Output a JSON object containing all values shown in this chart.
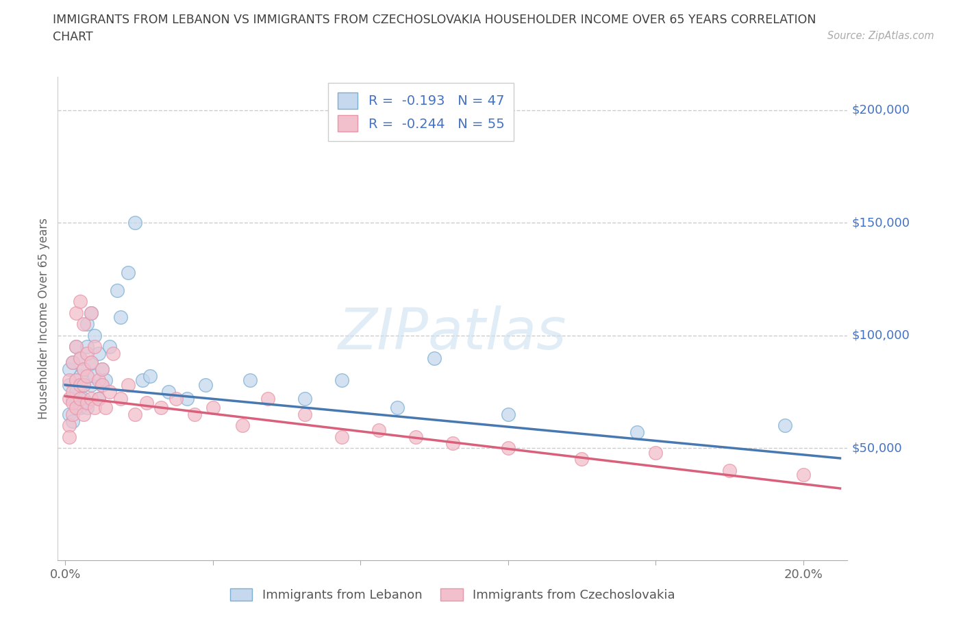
{
  "title_line1": "IMMIGRANTS FROM LEBANON VS IMMIGRANTS FROM CZECHOSLOVAKIA HOUSEHOLDER INCOME OVER 65 YEARS CORRELATION",
  "title_line2": "CHART",
  "source": "Source: ZipAtlas.com",
  "ylabel": "Householder Income Over 65 years",
  "xlim": [
    -0.002,
    0.212
  ],
  "ylim": [
    0,
    215000
  ],
  "ytick_vals": [
    50000,
    100000,
    150000,
    200000
  ],
  "ytick_labels": [
    "$50,000",
    "$100,000",
    "$150,000",
    "$200,000"
  ],
  "xtick_vals": [
    0.0,
    0.04,
    0.08,
    0.12,
    0.16,
    0.2
  ],
  "xtick_labels": [
    "0.0%",
    "",
    "",
    "",
    "",
    "20.0%"
  ],
  "lebanon_R": -0.193,
  "lebanon_N": 47,
  "czech_R": -0.244,
  "czech_N": 55,
  "watermark": "ZIPatlas",
  "blue_fill": "#c5d8ed",
  "pink_fill": "#f2bfcc",
  "blue_edge": "#7aafd4",
  "pink_edge": "#e896aa",
  "blue_line": "#4878b0",
  "pink_line": "#d9607a",
  "legend_color": "#4472c4",
  "title_color": "#404040",
  "grid_color": "#cccccc",
  "right_label_color": "#4472c4",
  "axis_label_color": "#666666",
  "bottom_legend_color": "#555555",
  "lb_intercept": 78000,
  "lb_slope": -155000,
  "cz_intercept": 73000,
  "cz_slope": -195000,
  "lebanon_x": [
    0.001,
    0.001,
    0.001,
    0.002,
    0.002,
    0.002,
    0.003,
    0.003,
    0.003,
    0.003,
    0.004,
    0.004,
    0.004,
    0.005,
    0.005,
    0.005,
    0.006,
    0.006,
    0.006,
    0.007,
    0.007,
    0.007,
    0.008,
    0.008,
    0.009,
    0.009,
    0.01,
    0.01,
    0.011,
    0.012,
    0.014,
    0.015,
    0.017,
    0.019,
    0.021,
    0.023,
    0.028,
    0.033,
    0.038,
    0.05,
    0.065,
    0.075,
    0.09,
    0.1,
    0.12,
    0.155,
    0.195
  ],
  "lebanon_y": [
    78000,
    65000,
    85000,
    72000,
    88000,
    62000,
    80000,
    95000,
    70000,
    75000,
    90000,
    68000,
    82000,
    85000,
    78000,
    72000,
    95000,
    105000,
    68000,
    88000,
    110000,
    78000,
    100000,
    82000,
    92000,
    72000,
    85000,
    78000,
    80000,
    95000,
    120000,
    108000,
    128000,
    150000,
    80000,
    82000,
    75000,
    72000,
    78000,
    80000,
    72000,
    80000,
    68000,
    90000,
    65000,
    57000,
    60000
  ],
  "czech_x": [
    0.001,
    0.001,
    0.001,
    0.001,
    0.002,
    0.002,
    0.002,
    0.002,
    0.003,
    0.003,
    0.003,
    0.003,
    0.004,
    0.004,
    0.004,
    0.004,
    0.005,
    0.005,
    0.005,
    0.005,
    0.006,
    0.006,
    0.006,
    0.007,
    0.007,
    0.007,
    0.008,
    0.008,
    0.009,
    0.009,
    0.01,
    0.01,
    0.011,
    0.012,
    0.013,
    0.015,
    0.017,
    0.019,
    0.022,
    0.026,
    0.03,
    0.035,
    0.04,
    0.048,
    0.055,
    0.065,
    0.075,
    0.085,
    0.095,
    0.105,
    0.12,
    0.14,
    0.16,
    0.18,
    0.2
  ],
  "czech_y": [
    72000,
    60000,
    80000,
    55000,
    75000,
    88000,
    65000,
    70000,
    95000,
    80000,
    110000,
    68000,
    90000,
    78000,
    115000,
    72000,
    85000,
    105000,
    65000,
    78000,
    92000,
    70000,
    82000,
    88000,
    110000,
    72000,
    95000,
    68000,
    80000,
    72000,
    78000,
    85000,
    68000,
    75000,
    92000,
    72000,
    78000,
    65000,
    70000,
    68000,
    72000,
    65000,
    68000,
    60000,
    72000,
    65000,
    55000,
    58000,
    55000,
    52000,
    50000,
    45000,
    48000,
    40000,
    38000
  ]
}
